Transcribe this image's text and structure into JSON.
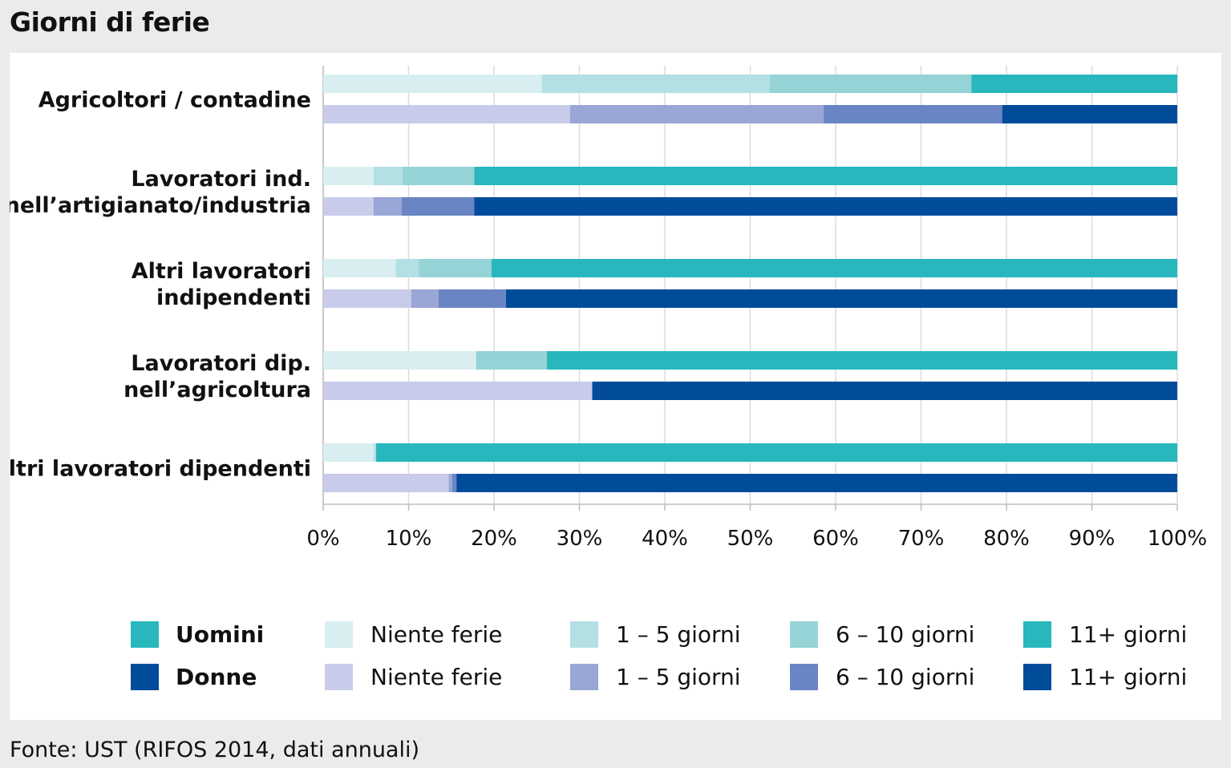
{
  "title": "Giorni di ferie",
  "source": "Fonte: UST (RIFOS 2014, dati annuali)",
  "chart_data": {
    "type": "bar",
    "orientation": "horizontal",
    "stacked": true,
    "percent": true,
    "xlim": [
      0,
      100
    ],
    "xticks": [
      "0%",
      "10%",
      "20%",
      "30%",
      "40%",
      "50%",
      "60%",
      "70%",
      "80%",
      "90%",
      "100%"
    ],
    "groups": [
      "Agricoltori / contadine",
      "Lavoratori ind. nell’artigianato/industria",
      "Altri lavoratori indipendenti",
      "Lavoratori dip. nell’agricoltura",
      "Altri lavoratori dipendenti"
    ],
    "group_label_lines": [
      [
        "Agricoltori / contadine"
      ],
      [
        "Lavoratori ind.",
        "nell’artigianato/industria"
      ],
      [
        "Altri lavoratori",
        "indipendenti"
      ],
      [
        "Lavoratori dip.",
        "nell’agricoltura"
      ],
      [
        "Altri lavoratori dipendenti"
      ]
    ],
    "segments": [
      "Niente ferie",
      "1 – 5 giorni",
      "6 – 10 giorni",
      "11+ giorni"
    ],
    "series": [
      {
        "name": "Uomini",
        "colors": [
          "#d9eef0",
          "#b3e0e2",
          "#95d3d6",
          "#27b7bc"
        ],
        "values": [
          [
            25.6,
            26.7,
            23.6,
            24.1
          ],
          [
            5.9,
            3.4,
            8.4,
            82.3
          ],
          [
            8.5,
            2.7,
            8.5,
            80.3
          ],
          [
            17.9,
            0.0,
            8.3,
            73.8
          ],
          [
            5.9,
            0.3,
            0.0,
            93.8
          ]
        ]
      },
      {
        "name": "Donne",
        "colors": [
          "#c8cbea",
          "#99a6d6",
          "#6a85c4",
          "#004c9b"
        ],
        "values": [
          [
            28.9,
            29.7,
            20.9,
            20.5
          ],
          [
            5.9,
            3.3,
            8.5,
            82.3
          ],
          [
            10.3,
            3.2,
            7.9,
            78.6
          ],
          [
            31.5,
            0.0,
            0.0,
            68.5
          ],
          [
            14.7,
            0.4,
            0.5,
            84.4
          ]
        ]
      }
    ],
    "legend": {
      "rows": [
        {
          "name": "Uomini",
          "swatch": "#27b7bc",
          "items": [
            "Niente ferie",
            "1 – 5 giorni",
            "6 – 10 giorni",
            "11+ giorni"
          ]
        },
        {
          "name": "Donne",
          "swatch": "#004c9b",
          "items": [
            "Niente ferie",
            "1 – 5 giorni",
            "6 – 10 giorni",
            "11+ giorni"
          ]
        }
      ],
      "placement": "bottom"
    },
    "grid": true
  }
}
